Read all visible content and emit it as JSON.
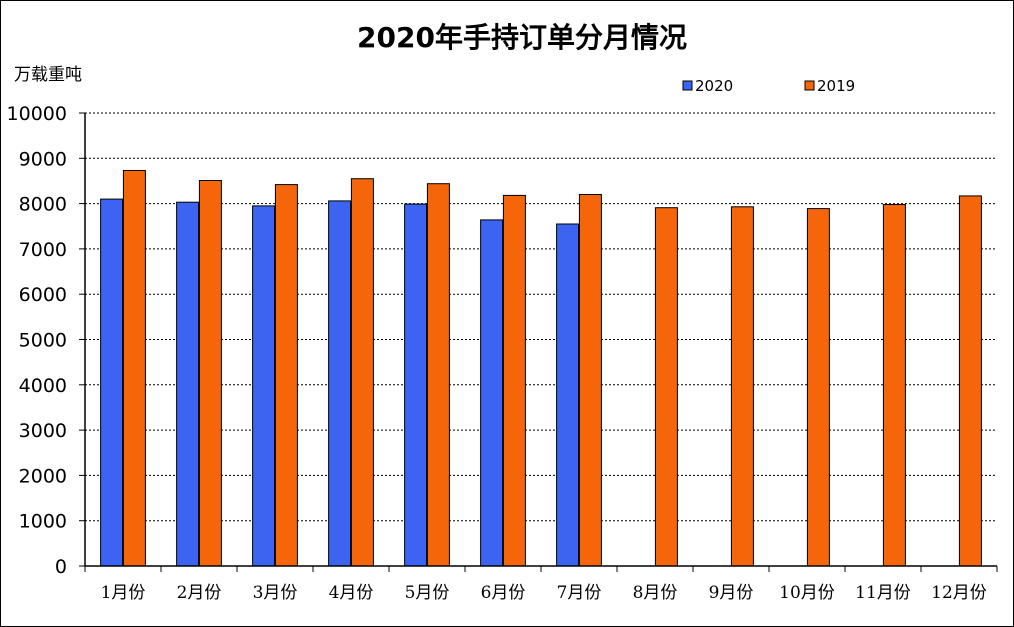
{
  "chart_data": {
    "type": "bar",
    "title": "2020年手持订单分月情况",
    "ylabel": "万载重吨",
    "xlabel": "",
    "ylim": [
      0,
      10000
    ],
    "yticks": [
      "0",
      "1000",
      "2000",
      "3000",
      "4000",
      "5000",
      "6000",
      "7000",
      "8000",
      "9000",
      "10000"
    ],
    "categories": [
      "1月份",
      "2月份",
      "3月份",
      "4月份",
      "5月份",
      "6月份",
      "7月份",
      "8月份",
      "9月份",
      "10月份",
      "11月份",
      "12月份"
    ],
    "series": [
      {
        "name": "2020",
        "color": "#3c64f0",
        "values": [
          8100,
          8030,
          7950,
          8060,
          7990,
          7640,
          7550,
          null,
          null,
          null,
          null,
          null
        ]
      },
      {
        "name": "2019",
        "color": "#f5650a",
        "values": [
          8730,
          8510,
          8420,
          8550,
          8440,
          8180,
          8200,
          7910,
          7930,
          7890,
          7980,
          8170
        ]
      }
    ],
    "grid": true,
    "legend_position": "top-right"
  }
}
